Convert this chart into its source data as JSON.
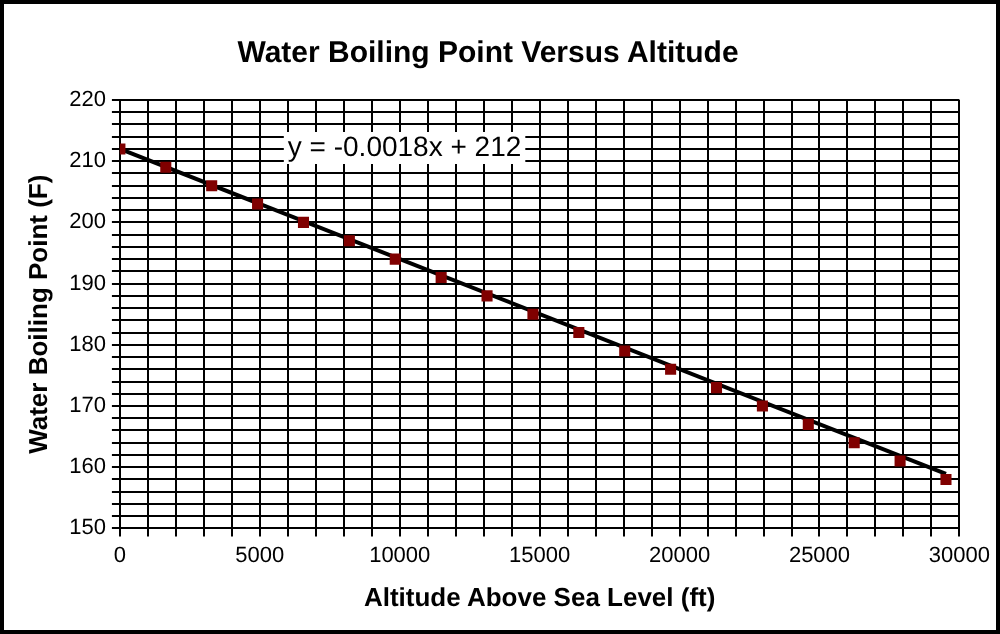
{
  "chart_data": {
    "type": "scatter",
    "title": "Water Boiling Point Versus Altitude",
    "xlabel": "Altitude Above Sea Level (ft)",
    "ylabel": "Water Boiling Point (F)",
    "x": [
      0,
      1640,
      3280,
      4920,
      6560,
      8200,
      9840,
      11480,
      13120,
      14760,
      16400,
      18040,
      19680,
      21320,
      22960,
      24600,
      26240,
      27880,
      29520
    ],
    "series": [
      {
        "color": "#800000",
        "marker": "square",
        "values": [
          212,
          209,
          206,
          203,
          200,
          197,
          194,
          191,
          188,
          185,
          182,
          179,
          176,
          173,
          170,
          167,
          164,
          161,
          158
        ]
      },
      {
        "type": "line",
        "color": "#000000",
        "marker": "none",
        "x": [
          0,
          29520
        ],
        "values": [
          212,
          158.9
        ]
      }
    ],
    "annotations": [
      "y = -0.0018x + 212"
    ],
    "xlim": [
      0,
      30000
    ],
    "ylim": [
      150,
      220
    ],
    "xticks": [
      0,
      {
        "value": 1000,
        "label": null
      },
      {
        "value": 2000,
        "label": null
      },
      {
        "value": 3000,
        "label": null
      },
      {
        "value": 4000,
        "label": null
      },
      5000,
      {
        "value": 6000,
        "label": null
      },
      {
        "value": 7000,
        "label": null
      },
      {
        "value": 8000,
        "label": null
      },
      {
        "value": 9000,
        "label": null
      },
      10000,
      {
        "value": 11000,
        "label": null
      },
      {
        "value": 12000,
        "label": null
      },
      {
        "value": 13000,
        "label": null
      },
      {
        "value": 14000,
        "label": null
      },
      15000,
      {
        "value": 16000,
        "label": null
      },
      {
        "value": 17000,
        "label": null
      },
      {
        "value": 18000,
        "label": null
      },
      {
        "value": 19000,
        "label": null
      },
      20000,
      {
        "value": 21000,
        "label": null
      },
      {
        "value": 22000,
        "label": null
      },
      {
        "value": 23000,
        "label": null
      },
      {
        "value": 24000,
        "label": null
      },
      25000,
      {
        "value": 26000,
        "label": null
      },
      {
        "value": 27000,
        "label": null
      },
      {
        "value": 28000,
        "label": null
      },
      {
        "value": 29000,
        "label": null
      },
      30000
    ],
    "yticks": [
      150,
      {
        "value": 152,
        "label": null
      },
      {
        "value": 154,
        "label": null
      },
      {
        "value": 156,
        "label": null
      },
      {
        "value": 158,
        "label": null
      },
      160,
      {
        "value": 162,
        "label": null
      },
      {
        "value": 164,
        "label": null
      },
      {
        "value": 166,
        "label": null
      },
      {
        "value": 168,
        "label": null
      },
      170,
      {
        "value": 172,
        "label": null
      },
      {
        "value": 174,
        "label": null
      },
      {
        "value": 176,
        "label": null
      },
      {
        "value": 178,
        "label": null
      },
      180,
      {
        "value": 182,
        "label": null
      },
      {
        "value": 184,
        "label": null
      },
      {
        "value": 186,
        "label": null
      },
      {
        "value": 188,
        "label": null
      },
      190,
      {
        "value": 192,
        "label": null
      },
      {
        "value": 194,
        "label": null
      },
      {
        "value": 196,
        "label": null
      },
      {
        "value": 198,
        "label": null
      },
      200,
      {
        "value": 202,
        "label": null
      },
      {
        "value": 204,
        "label": null
      },
      {
        "value": 206,
        "label": null
      },
      {
        "value": 208,
        "label": null
      },
      210,
      {
        "value": 212,
        "label": null
      },
      {
        "value": 214,
        "label": null
      },
      {
        "value": 216,
        "label": null
      },
      {
        "value": 218,
        "label": null
      },
      220
    ],
    "grid": true,
    "legend": false
  }
}
